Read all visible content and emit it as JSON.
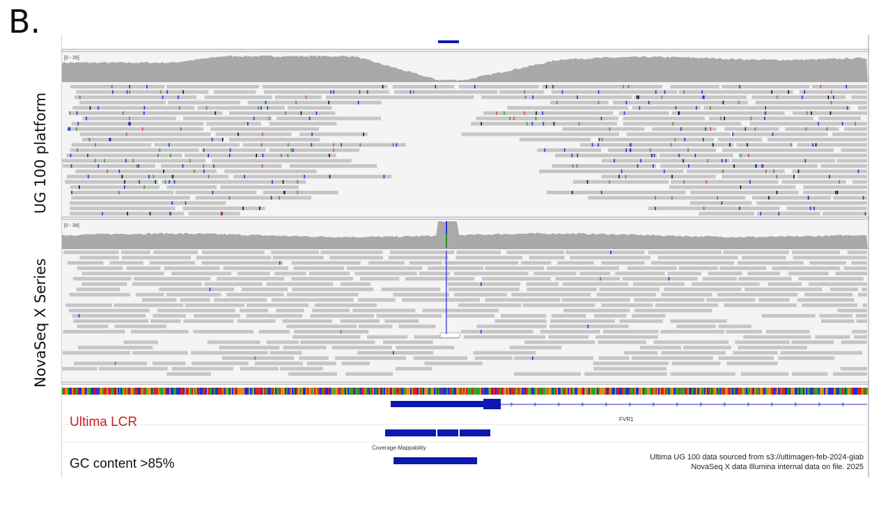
{
  "figure": {
    "panel_letter": "B."
  },
  "labels": {
    "ug100": "UG 100 platform",
    "novaseq": "NovaSeq X Series"
  },
  "tracks": {
    "ug100_coverage_range": "[0 - 26]",
    "novaseq_coverage_range": "[0 - 38]",
    "gene_name": "FVR1",
    "lcr_label": "Ultima LCR",
    "covmap_label": "Coverage-Mappability",
    "gc_label": "GC content >85%"
  },
  "notes": {
    "line1": "Ultima UG 100 data sourced from s3://ultimagen-feb-2024-giab",
    "line2": "NovaSeq X data Illumina internal data on file. 2025"
  },
  "colors": {
    "read": "#c6c6c6",
    "coverage": "#a9a9a9",
    "feature": "#0c18b0",
    "lcr_text": "#cc1f1f",
    "mismatch_blue": "#2d2de0",
    "mismatch_red": "#d05050",
    "mismatch_green": "#3a9a3a"
  }
}
